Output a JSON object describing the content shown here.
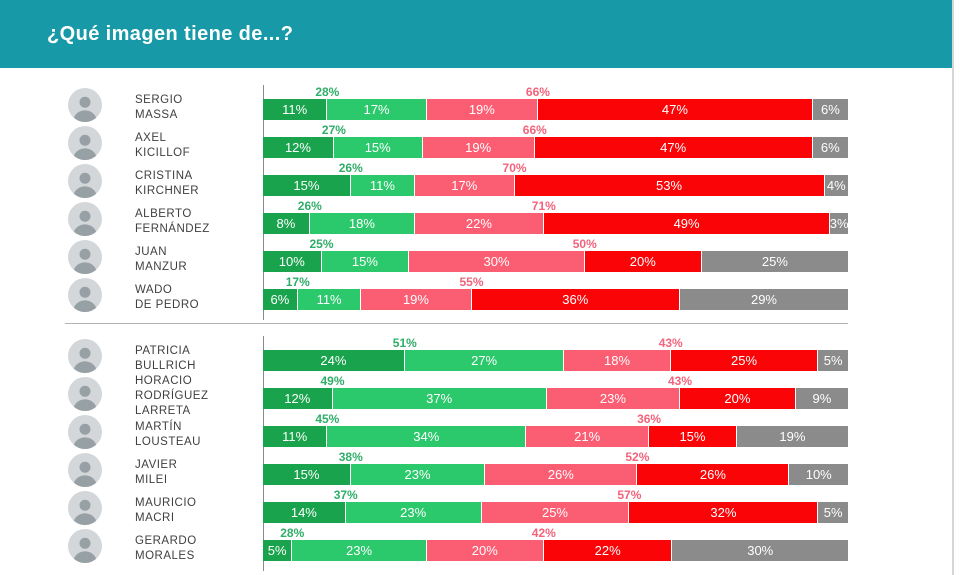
{
  "header": {
    "title": "¿Qué imagen tiene de...?"
  },
  "colors": {
    "header_bg": "#1799a8",
    "segments": [
      "#18a34c",
      "#2bc96c",
      "#fb5d72",
      "#fa0407",
      "#8b8b8b"
    ],
    "positive_total_text": "#2fae68",
    "negative_total_text": "#f2637c",
    "divider": "#b3b3b3",
    "axis_line": "#8a8a8a",
    "name_text": "#3f3f3f"
  },
  "chart_data": {
    "type": "bar",
    "orientation": "horizontal-stacked",
    "title": "¿Qué imagen tiene de...?",
    "segment_colors": [
      "#18a34c",
      "#2bc96c",
      "#fb5d72",
      "#fa0407",
      "#8b8b8b"
    ],
    "groups": [
      {
        "rows": [
          {
            "name_line1": "SERGIO",
            "name_line2": "MASSA",
            "positive_total_label": "28%",
            "negative_total_label": "66%",
            "values": [
              11,
              17,
              19,
              47,
              6
            ],
            "value_labels": [
              "11%",
              "17%",
              "19%",
              "47%",
              "6%"
            ]
          },
          {
            "name_line1": "AXEL",
            "name_line2": "KICILLOF",
            "positive_total_label": "27%",
            "negative_total_label": "66%",
            "values": [
              12,
              15,
              19,
              47,
              6
            ],
            "value_labels": [
              "12%",
              "15%",
              "19%",
              "47%",
              "6%"
            ]
          },
          {
            "name_line1": "CRISTINA",
            "name_line2": "KIRCHNER",
            "positive_total_label": "26%",
            "negative_total_label": "70%",
            "values": [
              15,
              11,
              17,
              53,
              4
            ],
            "value_labels": [
              "15%",
              "11%",
              "17%",
              "53%",
              "4%"
            ]
          },
          {
            "name_line1": "ALBERTO",
            "name_line2": "FERNÁNDEZ",
            "positive_total_label": "26%",
            "negative_total_label": "71%",
            "values": [
              8,
              18,
              22,
              49,
              3
            ],
            "value_labels": [
              "8%",
              "18%",
              "22%",
              "49%",
              "3%"
            ]
          },
          {
            "name_line1": "JUAN",
            "name_line2": "MANZUR",
            "positive_total_label": "25%",
            "negative_total_label": "50%",
            "values": [
              10,
              15,
              30,
              20,
              25
            ],
            "value_labels": [
              "10%",
              "15%",
              "30%",
              "20%",
              "25%"
            ]
          },
          {
            "name_line1": "WADO",
            "name_line2": "DE PEDRO",
            "positive_total_label": "17%",
            "negative_total_label": "55%",
            "values": [
              6,
              11,
              19,
              36,
              29
            ],
            "value_labels": [
              "6%",
              "11%",
              "19%",
              "36%",
              "29%"
            ]
          }
        ]
      },
      {
        "rows": [
          {
            "name_line1": "PATRICIA",
            "name_line2": "BULLRICH",
            "positive_total_label": "51%",
            "negative_total_label": "43%",
            "values": [
              24,
              27,
              18,
              25,
              5
            ],
            "value_labels": [
              "24%",
              "27%",
              "18%",
              "25%",
              "5%"
            ]
          },
          {
            "name_line1": "HORACIO",
            "name_line2": "RODRÍGUEZ LARRETA",
            "positive_total_label": "49%",
            "negative_total_label": "43%",
            "values": [
              12,
              37,
              23,
              20,
              9
            ],
            "value_labels": [
              "12%",
              "37%",
              "23%",
              "20%",
              "9%"
            ]
          },
          {
            "name_line1": "MARTÍN",
            "name_line2": "LOUSTEAU",
            "positive_total_label": "45%",
            "negative_total_label": "36%",
            "values": [
              11,
              34,
              21,
              15,
              19
            ],
            "value_labels": [
              "11%",
              "34%",
              "21%",
              "15%",
              "19%"
            ]
          },
          {
            "name_line1": "JAVIER",
            "name_line2": "MILEI",
            "positive_total_label": "38%",
            "negative_total_label": "52%",
            "values": [
              15,
              23,
              26,
              26,
              10
            ],
            "value_labels": [
              "15%",
              "23%",
              "26%",
              "26%",
              "10%"
            ]
          },
          {
            "name_line1": "MAURICIO",
            "name_line2": "MACRI",
            "positive_total_label": "37%",
            "negative_total_label": "57%",
            "values": [
              14,
              23,
              25,
              32,
              5
            ],
            "value_labels": [
              "14%",
              "23%",
              "25%",
              "32%",
              "5%"
            ]
          },
          {
            "name_line1": "GERARDO",
            "name_line2": "MORALES",
            "positive_total_label": "28%",
            "negative_total_label": "42%",
            "values": [
              5,
              23,
              20,
              22,
              30
            ],
            "value_labels": [
              "5%",
              "23%",
              "20%",
              "22%",
              "30%"
            ]
          }
        ]
      }
    ]
  }
}
